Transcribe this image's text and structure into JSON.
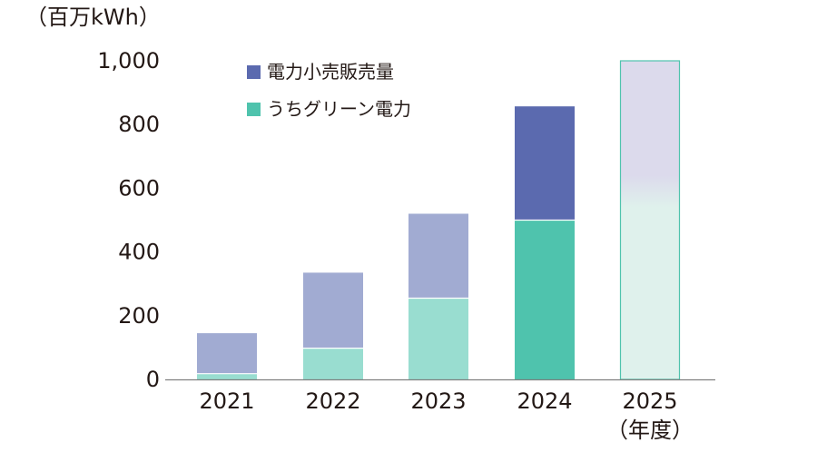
{
  "chart_data": {
    "type": "bar",
    "unit_label": "（百万kWh）",
    "xlabel": "（年度）",
    "ylabel": "",
    "categories": [
      "2021",
      "2022",
      "2023",
      "2024",
      "2025"
    ],
    "ylim": [
      0,
      1000
    ],
    "yticks": [
      {
        "value": 0,
        "label": "0"
      },
      {
        "value": 200,
        "label": "200"
      },
      {
        "value": 400,
        "label": "400"
      },
      {
        "value": 600,
        "label": "600"
      },
      {
        "value": 800,
        "label": "800"
      },
      {
        "value": 1000,
        "label": "1,000"
      }
    ],
    "series": [
      {
        "name": "電力小売販売量",
        "values": [
          145,
          335,
          520,
          857,
          1000
        ]
      },
      {
        "name": "うちグリーン電力",
        "values": [
          18,
          98,
          255,
          500,
          null
        ]
      }
    ],
    "stacked_overlay": true,
    "grid": false,
    "legend_position": "top-center",
    "colors": {
      "total_highlight": "#5B6AAF",
      "green_highlight": "#4FC3AD",
      "total_faded": "#A1ABD2",
      "green_faded": "#99DDD0",
      "forecast_top": "#DCDAEC",
      "forecast_bottom": "#DFF1EC",
      "forecast_border": "#4FC3AD",
      "axis": "#808080"
    },
    "highlight_category": "2024",
    "forecast_category": "2025"
  }
}
